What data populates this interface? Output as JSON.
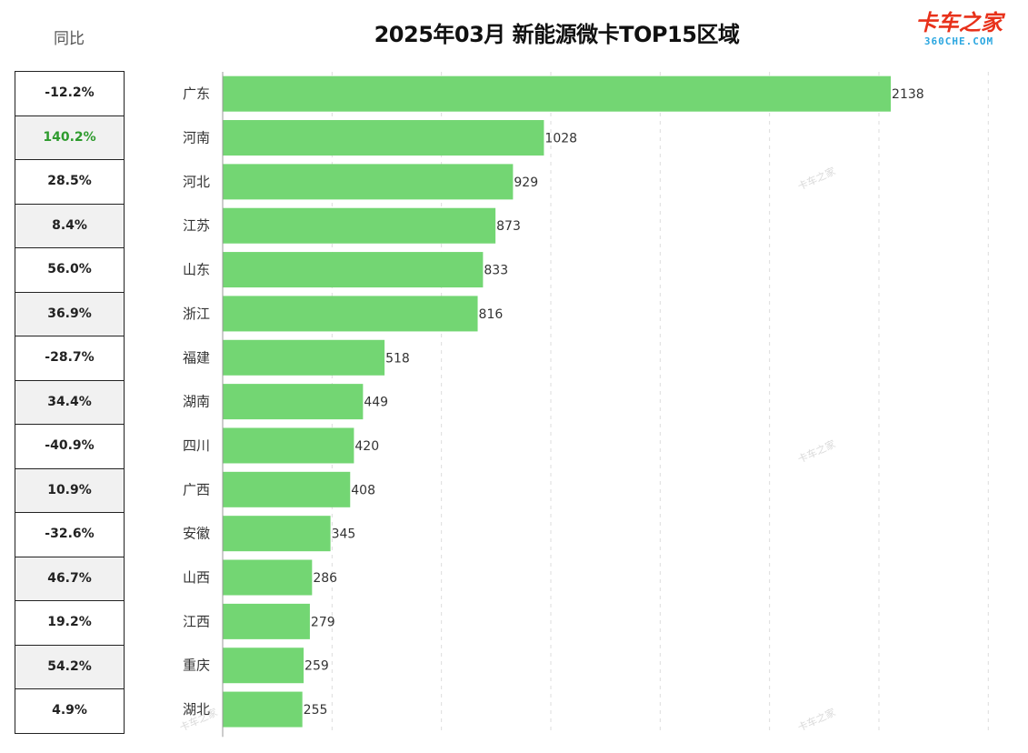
{
  "title": "2025年03月 新能源微卡TOP15区域",
  "yoy_header": "同比",
  "logo": {
    "main": "卡车之家",
    "sub": "360CHE.COM",
    "watermark": "卡车之家"
  },
  "colors": {
    "bar": "#73d673",
    "grid": "#dddddd",
    "axis": "#999999",
    "yoy_highlight": "#2e9b2e"
  },
  "chart_data": {
    "type": "bar",
    "orientation": "horizontal",
    "title": "2025年03月 新能源微卡TOP15区域",
    "categories": [
      "广东",
      "河南",
      "河北",
      "江苏",
      "山东",
      "浙江",
      "福建",
      "湖南",
      "四川",
      "广西",
      "安徽",
      "山西",
      "江西",
      "重庆",
      "湖北"
    ],
    "values": [
      2138,
      1028,
      929,
      873,
      833,
      816,
      518,
      449,
      420,
      408,
      345,
      286,
      279,
      259,
      255
    ],
    "yoy": [
      "-12.2%",
      "140.2%",
      "28.5%",
      "8.4%",
      "56.0%",
      "36.9%",
      "-28.7%",
      "34.4%",
      "-40.9%",
      "10.9%",
      "-32.6%",
      "46.7%",
      "19.2%",
      "54.2%",
      "4.9%"
    ],
    "xlim": [
      0,
      2450
    ],
    "grid": true,
    "legend": "none"
  }
}
